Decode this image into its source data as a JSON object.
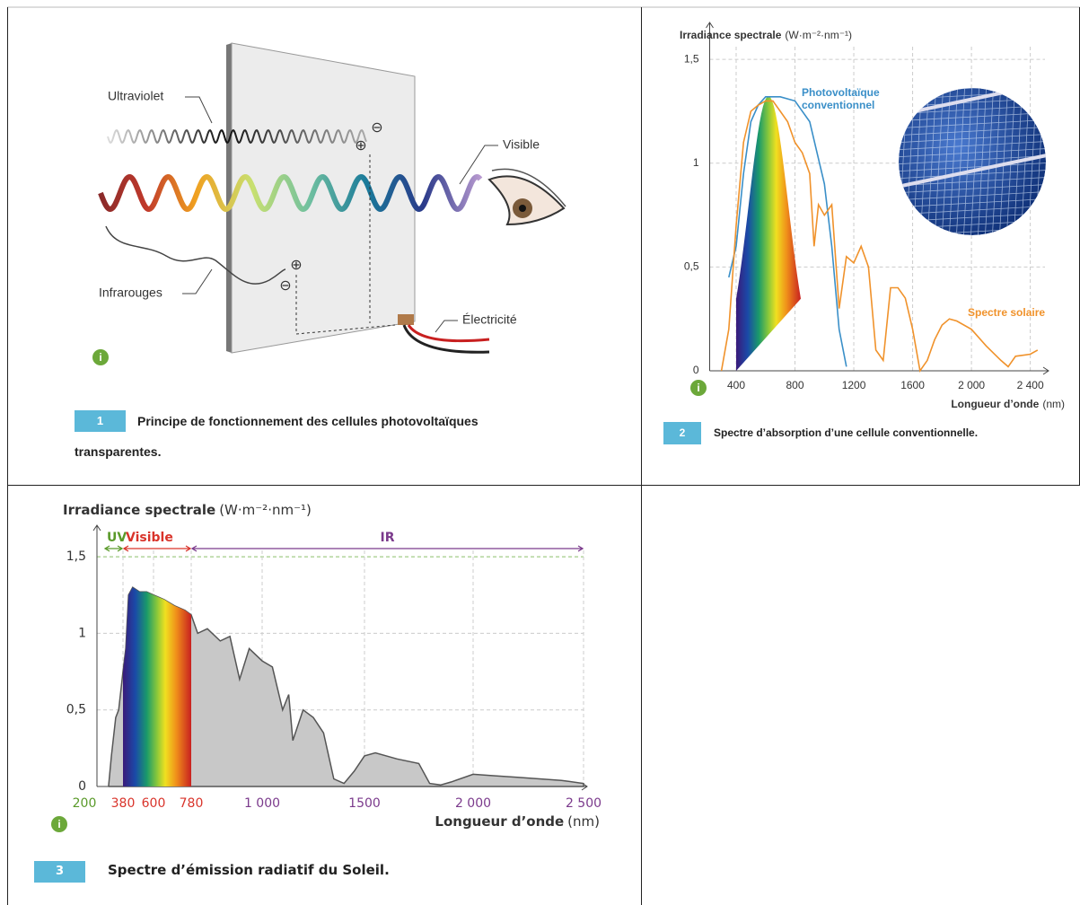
{
  "figure_1": {
    "labels": {
      "ultraviolet": "Ultraviolet",
      "visible": "Visible",
      "infrared": "Infrarouges",
      "electricity": "Électricité"
    },
    "charges": [
      "⊖",
      "⊕",
      "⊕",
      "⊖"
    ],
    "caption_number": "1",
    "caption": "Principe de fonctionnement des cellules photovoltaïques transparentes."
  },
  "info_icon": "i",
  "chart_data": [
    {
      "type": "line",
      "caption_number": "2",
      "caption": "Spectre d’absorption d’une cellule conventionnelle.",
      "y_label": "Irradiance spectrale",
      "y_unit": "(W·m⁻²·nm⁻¹)",
      "x_label": "Longueur d’onde",
      "x_unit": "(nm)",
      "xlim": [
        220,
        2500
      ],
      "ylim": [
        0,
        1.6
      ],
      "xticks": [
        400,
        800,
        1200,
        1600,
        {
          "value": 2000,
          "label": "2 000"
        },
        {
          "value": 2400,
          "label": "2 400"
        }
      ],
      "yticks": [
        0,
        {
          "value": 0.5,
          "label": "0,5"
        },
        1,
        {
          "value": 1.5,
          "label": "1,5"
        }
      ],
      "grid": true,
      "series": [
        {
          "name": "Photovoltaïque conventionnel",
          "color": "#3a8fc8",
          "x": [
            350,
            400,
            450,
            500,
            550,
            600,
            700,
            800,
            900,
            1000,
            1050,
            1100,
            1150
          ],
          "values": [
            0.45,
            0.6,
            0.95,
            1.2,
            1.28,
            1.32,
            1.32,
            1.3,
            1.2,
            0.9,
            0.6,
            0.2,
            0.02
          ]
        },
        {
          "name": "Spectre solaire",
          "color": "#f0922b",
          "x": [
            300,
            350,
            400,
            450,
            500,
            550,
            600,
            650,
            700,
            750,
            800,
            850,
            900,
            930,
            960,
            1000,
            1050,
            1100,
            1150,
            1200,
            1250,
            1300,
            1350,
            1400,
            1450,
            1500,
            1550,
            1600,
            1650,
            1700,
            1750,
            1800,
            1850,
            1900,
            2000,
            2100,
            2200,
            2250,
            2300,
            2400,
            2450
          ],
          "values": [
            0,
            0.2,
            0.7,
            1.1,
            1.25,
            1.28,
            1.3,
            1.3,
            1.25,
            1.2,
            1.1,
            1.05,
            0.95,
            0.6,
            0.8,
            0.75,
            0.8,
            0.3,
            0.55,
            0.52,
            0.6,
            0.5,
            0.1,
            0.05,
            0.4,
            0.4,
            0.35,
            0.2,
            0,
            0.05,
            0.15,
            0.22,
            0.25,
            0.24,
            0.2,
            0.12,
            0.05,
            0.02,
            0.07,
            0.08,
            0.1
          ]
        }
      ]
    },
    {
      "type": "area",
      "caption_number": "3",
      "caption": "Spectre d’émission radiatif du Soleil.",
      "y_label": "Irradiance spectrale",
      "y_unit": "(W·m⁻²·nm⁻¹)",
      "x_label": "Longueur d’onde",
      "x_unit": "(nm)",
      "xlim": [
        200,
        2500
      ],
      "ylim": [
        0,
        1.6
      ],
      "xticks": [
        200,
        380,
        600,
        780,
        {
          "value": 1000,
          "label": "1 000"
        },
        1500,
        {
          "value": 2000,
          "label": "2 000"
        },
        {
          "value": 2500,
          "label": "2 500"
        }
      ],
      "xtick_colors": [
        "#5a9a2a",
        "#d9342b",
        "#d9342b",
        "#d9342b",
        "#7b3a8c",
        "#7b3a8c",
        "#7b3a8c",
        "#7b3a8c"
      ],
      "yticks": [
        0,
        {
          "value": 0.5,
          "label": "0,5"
        },
        1,
        {
          "value": 1.5,
          "label": "1,5"
        }
      ],
      "grid": true,
      "color": "#c8c8c8",
      "bands": [
        {
          "label": "UV",
          "color": "#5a9a2a",
          "range": [
            250,
            380
          ]
        },
        {
          "label": "Visible",
          "color": "#d9342b",
          "range": [
            380,
            780
          ]
        },
        {
          "label": "IR",
          "color": "#7b3a8c",
          "range": [
            780,
            2500
          ]
        }
      ],
      "x": [
        280,
        300,
        330,
        350,
        380,
        400,
        420,
        450,
        500,
        550,
        600,
        650,
        700,
        750,
        780,
        800,
        830,
        870,
        900,
        930,
        960,
        1000,
        1050,
        1100,
        1130,
        1150,
        1200,
        1250,
        1300,
        1350,
        1400,
        1450,
        1500,
        1550,
        1650,
        1750,
        1800,
        1850,
        1900,
        2000,
        2100,
        2200,
        2300,
        2400,
        2500
      ],
      "values": [
        0,
        0.2,
        0.45,
        0.5,
        0.75,
        0.9,
        1.25,
        1.3,
        1.27,
        1.27,
        1.25,
        1.22,
        1.18,
        1.15,
        1.12,
        1.0,
        1.03,
        0.95,
        0.98,
        0.7,
        0.9,
        0.82,
        0.78,
        0.5,
        0.6,
        0.3,
        0.5,
        0.45,
        0.35,
        0.05,
        0.02,
        0.1,
        0.2,
        0.22,
        0.18,
        0.15,
        0.02,
        0.01,
        0.03,
        0.08,
        0.07,
        0.06,
        0.05,
        0.04,
        0.02
      ]
    }
  ]
}
